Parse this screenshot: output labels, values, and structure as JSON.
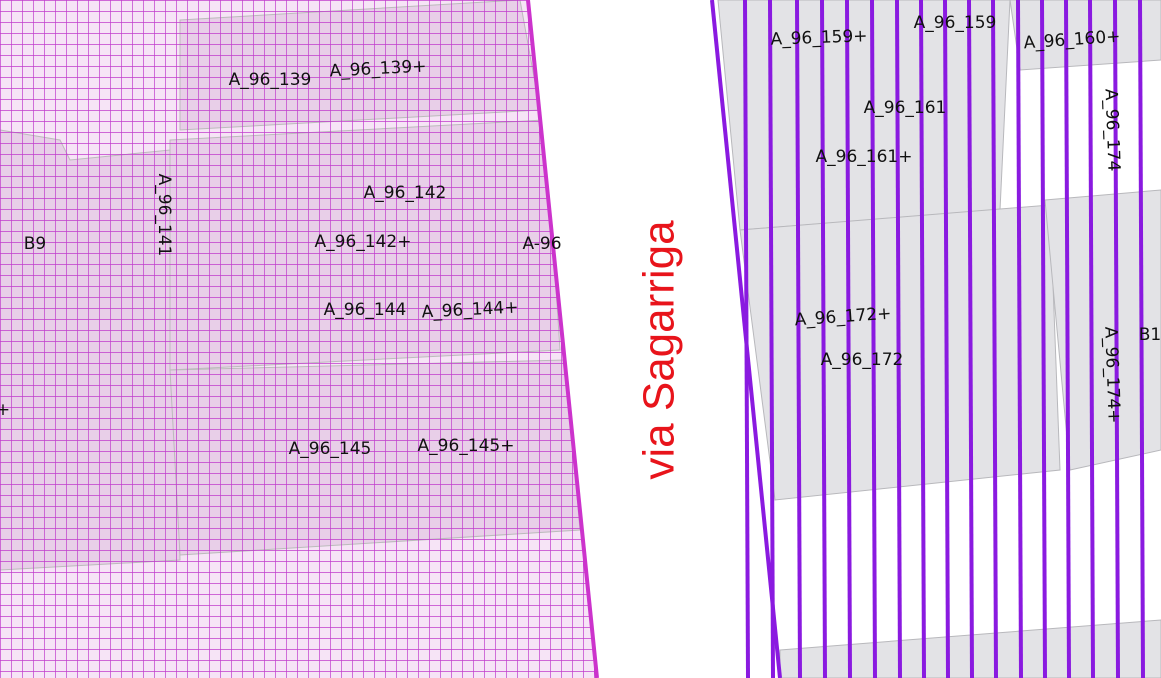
{
  "street_name": "via Sagarriga",
  "labels": [
    "A_96_139",
    "A_96_139+",
    "A_96_141",
    "A_96_142",
    "A_96_142+",
    "A-96",
    "B9",
    "A_96_144",
    "A_96_144+",
    "A_96_145",
    "A_96_145+",
    "+",
    "A_96_159+",
    "A_96_159",
    "A_96_160+",
    "A_96_161",
    "A_96_161+",
    "A_96_174",
    "A_96_172+",
    "A_96_172",
    "A_96_174+",
    "B1"
  ]
}
